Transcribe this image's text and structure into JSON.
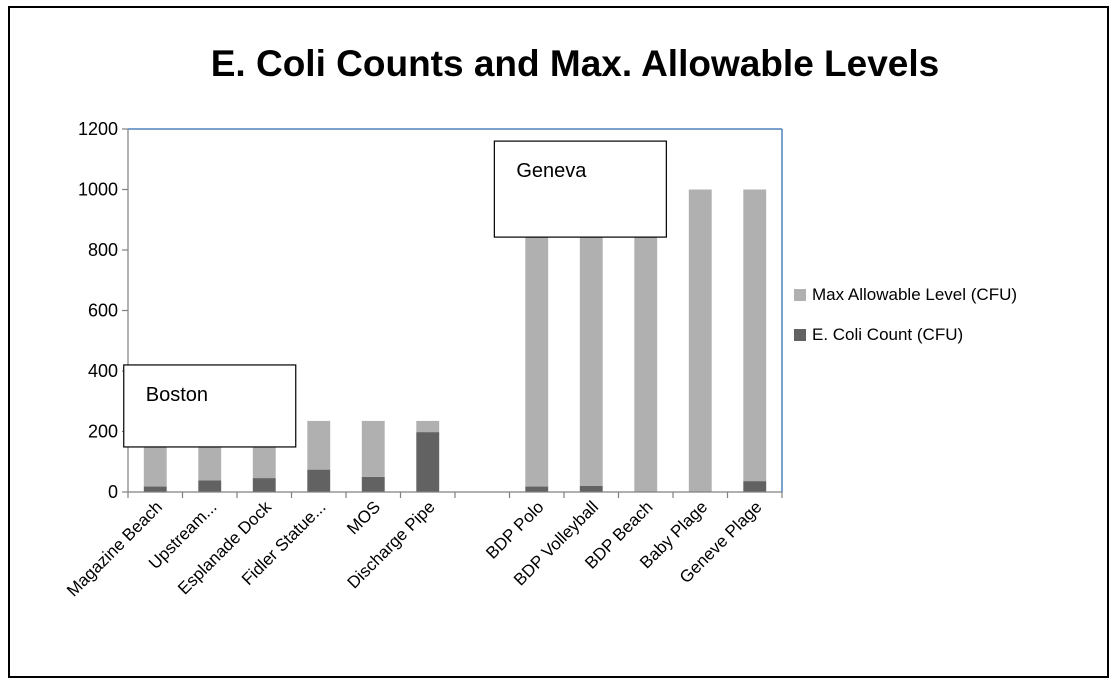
{
  "chart_data": {
    "type": "bar",
    "stacked": true,
    "title": "E. Coli Counts and Max. Allowable Levels",
    "categories": [
      "Magazine Beach",
      "Upstream...",
      "Esplanade Dock",
      "Fidler Statue...",
      "MOS",
      "Discharge Pipe",
      "",
      "BDP Polo",
      "BDP Volleyball",
      "BDP Beach",
      "Baby Plage",
      "Geneve Plage"
    ],
    "series": [
      {
        "name": "E. Coli Count (CFU)",
        "color": "#626262",
        "values": [
          18,
          38,
          46,
          74,
          50,
          198,
          0,
          18,
          20,
          0,
          0,
          36
        ]
      },
      {
        "name": "Max Allowable Level (CFU)",
        "color": "#b0b0b0",
        "values": [
          217,
          197,
          189,
          161,
          185,
          37,
          0,
          982,
          980,
          1000,
          1000,
          964
        ]
      }
    ],
    "ylim": [
      0,
      1200
    ],
    "yticks": [
      "0",
      "200",
      "400",
      "600",
      "800",
      "1000",
      "1200"
    ],
    "legend_position": "right",
    "grid": false,
    "annotations": [
      {
        "text": "Boston",
        "x_category": 1.5,
        "y_value": 420
      },
      {
        "text": "Geneva",
        "x_category": 8.3,
        "y_value": 1160
      }
    ]
  }
}
